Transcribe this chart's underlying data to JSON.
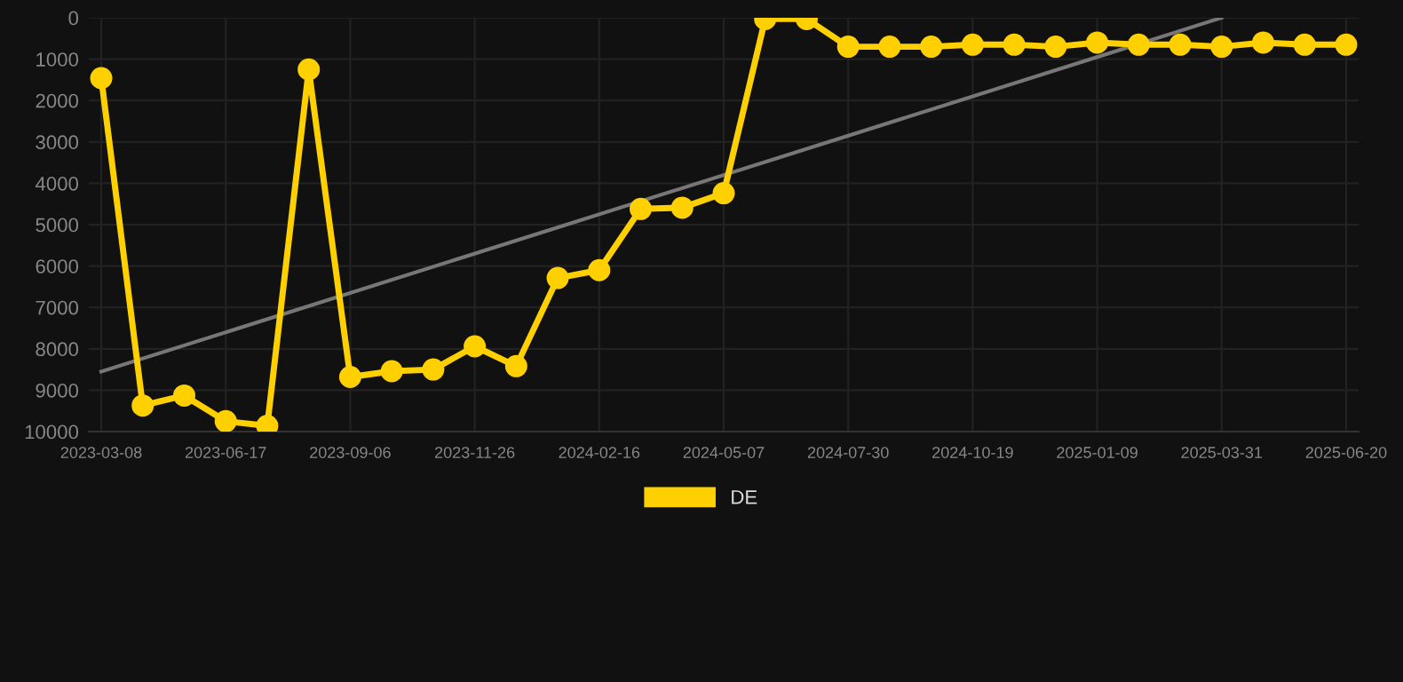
{
  "chart_data": {
    "type": "line",
    "categories": [
      "2023-03-08",
      null,
      null,
      "2023-06-17",
      null,
      null,
      "2023-09-06",
      null,
      null,
      "2023-11-26",
      null,
      null,
      "2024-02-16",
      null,
      null,
      "2024-05-07",
      null,
      null,
      "2024-07-30",
      null,
      null,
      "2024-10-19",
      null,
      null,
      "2025-01-09",
      null,
      null,
      "2025-03-31",
      null,
      null,
      "2025-06-20"
    ],
    "series": [
      {
        "name": "DE",
        "color": "#ffd000",
        "marker": "circle",
        "values": [
          1460,
          9370,
          9130,
          9750,
          9860,
          1250,
          8680,
          8540,
          8500,
          7940,
          8420,
          6290,
          6100,
          4620,
          4590,
          4240,
          30,
          30,
          700,
          700,
          700,
          650,
          650,
          700,
          600,
          650,
          650,
          700,
          600,
          650,
          650
        ]
      },
      {
        "color": "#777777",
        "marker": "none",
        "values": [
          8550,
          null,
          null,
          null,
          null,
          null,
          null,
          null,
          null,
          null,
          null,
          null,
          null,
          null,
          null,
          null,
          null,
          null,
          null,
          null,
          null,
          null,
          null,
          null,
          null,
          null,
          null,
          0,
          null,
          null,
          null
        ]
      }
    ],
    "ylim": [
      10000,
      0
    ],
    "yticks": [
      0,
      1000,
      2000,
      3000,
      4000,
      5000,
      6000,
      7000,
      8000,
      9000,
      10000
    ],
    "grid": true,
    "legend": "bottom",
    "line_style": "solid"
  }
}
